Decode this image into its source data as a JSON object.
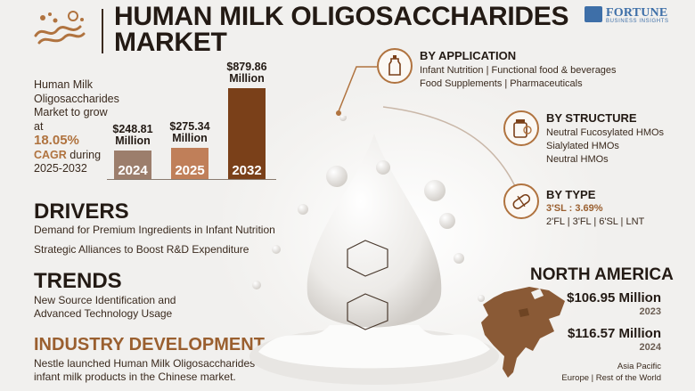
{
  "header": {
    "title": "HUMAN MILK OLIGOSACCHARIDES MARKET",
    "brand_name": "FORTUNE",
    "brand_sub": "BUSINESS INSIGHTS"
  },
  "intro": {
    "text_before": "Human Milk Oligosaccharides Market to grow at",
    "cagr_value": "18.05%",
    "cagr_label": "CAGR",
    "text_after": "during 2025-2032"
  },
  "chart_data": {
    "type": "bar",
    "categories": [
      "2024",
      "2025",
      "2032"
    ],
    "values": [
      248.81,
      275.34,
      879.86
    ],
    "value_labels": [
      "$248.81 Million",
      "$275.34 Million",
      "$879.86 Million"
    ],
    "colors": [
      "#9c7e6c",
      "#c07f59",
      "#7a4019"
    ],
    "ylim": [
      0,
      900
    ]
  },
  "drivers": {
    "heading": "DRIVERS",
    "items": [
      "Demand for Premium Ingredients in Infant Nutrition",
      "Strategic Alliances to Boost R&D Expenditure"
    ]
  },
  "trends": {
    "heading": "TRENDS",
    "text": "New Source Identification and Advanced Technology Usage"
  },
  "industry": {
    "heading": "INDUSTRY DEVELOPMENT",
    "text": "Nestle launched Human Milk Oligosaccharides-based infant milk products in the Chinese market."
  },
  "segments": {
    "application": {
      "heading": "BY APPLICATION",
      "line1": "Infant Nutrition  |  Functional food & beverages",
      "line2": "Food Supplements  |  Pharmaceuticals",
      "icon": "baby-bottle-icon"
    },
    "structure": {
      "heading": "BY STRUCTURE",
      "items": [
        "Neutral Fucosylated HMOs",
        "Sialylated HMOs",
        "Neutral HMOs"
      ],
      "icon": "molecule-jar-icon"
    },
    "type": {
      "heading": "BY TYPE",
      "highlight": "3'SL : 3.69%",
      "others": "2'FL  |  3'FL  |  6'SL  |  LNT",
      "icon": "pill-icon"
    }
  },
  "north_america": {
    "heading": "NORTH AMERICA",
    "value_1": "$106.95 Million",
    "year_1": "2023",
    "value_2": "$116.57 Million",
    "year_2": "2024",
    "footer_1": "Asia Pacific",
    "footer_2": "Europe  |  Rest of the World"
  },
  "colors": {
    "accent_brown": "#b0733f",
    "dark_brown": "#7a4019",
    "brand_blue": "#3e6fa8"
  }
}
